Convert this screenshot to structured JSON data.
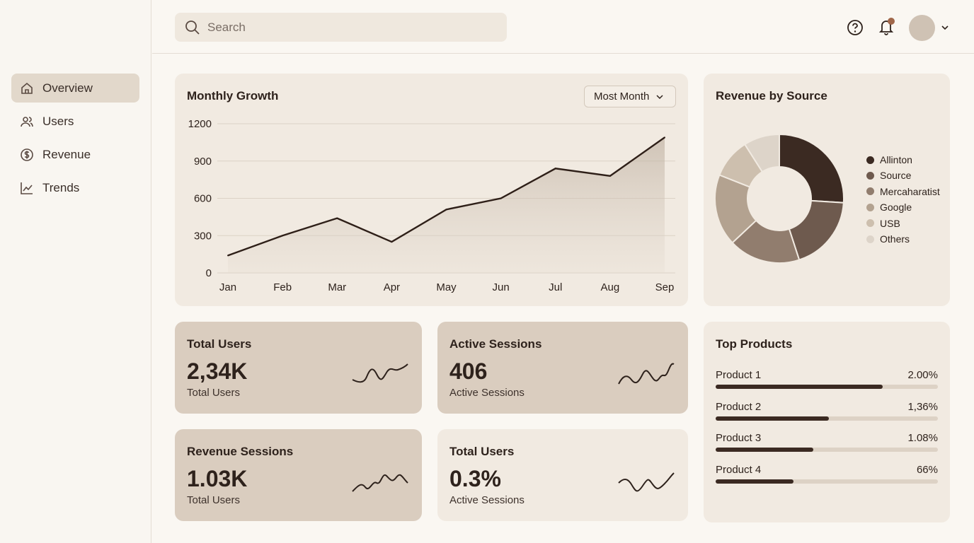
{
  "sidebar": {
    "items": [
      {
        "label": "Overview",
        "icon": "home-icon",
        "active": true
      },
      {
        "label": "Users",
        "icon": "users-icon"
      },
      {
        "label": "Revenue",
        "icon": "dollar-icon"
      },
      {
        "label": "Trends",
        "icon": "trend-icon"
      }
    ]
  },
  "topbar": {
    "search_placeholder": "Search",
    "notification_dot_color": "#a0674a"
  },
  "growth": {
    "title": "Monthly Growth",
    "dropdown": "Most Month"
  },
  "revenue": {
    "title": "Revenue by Source"
  },
  "stats": [
    {
      "title": "Total Users",
      "value": "2,34K",
      "sub": "Total Users"
    },
    {
      "title": "Active Sessions",
      "value": "406",
      "sub": "Active Sessions"
    },
    {
      "title": "Revenue Sessions",
      "value": "1.03K",
      "sub": "Total Users"
    },
    {
      "title": "Total Users",
      "value": "0.3%",
      "sub": "Active Sessions"
    }
  ],
  "products": {
    "title": "Top Products",
    "items": [
      {
        "name": "Product 1",
        "value": "2.00%",
        "fill": 0.75
      },
      {
        "name": "Product 2",
        "value": "1,36%",
        "fill": 0.51
      },
      {
        "name": "Product 3",
        "value": "1.08%",
        "fill": 0.44
      },
      {
        "name": "Product 4",
        "value": "66%",
        "fill": 0.35
      }
    ]
  },
  "chart_data": [
    {
      "type": "area",
      "title": "Monthly Growth",
      "categories": [
        "Jan",
        "Feb",
        "Mar",
        "Apr",
        "May",
        "Jun",
        "Jul",
        "Aug",
        "Sep"
      ],
      "values": [
        140,
        300,
        440,
        250,
        510,
        600,
        840,
        780,
        1090
      ],
      "yticks": [
        0,
        300,
        600,
        900,
        1200
      ],
      "ylim": [
        0,
        1200
      ],
      "grid": true
    },
    {
      "type": "pie",
      "title": "Revenue by Source",
      "donut": true,
      "labels": [
        "Allinton",
        "Source",
        "Mercaharatist",
        "Google",
        "USB",
        "Others"
      ],
      "values": [
        26,
        19,
        18,
        18,
        10,
        9
      ],
      "colors": [
        "#3b2a22",
        "#6e5a4e",
        "#917d6e",
        "#b3a290",
        "#cdbfae",
        "#ddd4c9"
      ],
      "legend": "right"
    }
  ]
}
